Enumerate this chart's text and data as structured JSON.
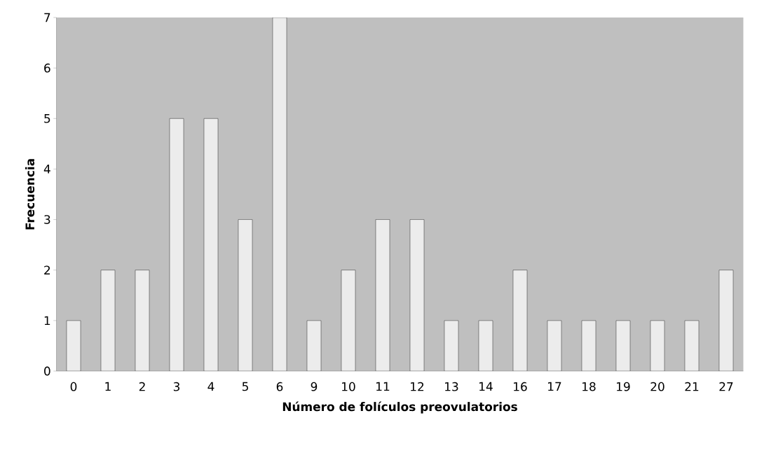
{
  "chart_data": {
    "type": "bar",
    "xlabel": "Número de folículos preovulatorios",
    "ylabel": "Frecuencia",
    "categories": [
      "0",
      "1",
      "2",
      "3",
      "4",
      "5",
      "6",
      "9",
      "10",
      "11",
      "12",
      "13",
      "14",
      "16",
      "17",
      "18",
      "19",
      "20",
      "21",
      "27"
    ],
    "values": [
      1,
      2,
      2,
      5,
      5,
      3,
      7,
      1,
      2,
      3,
      3,
      1,
      1,
      2,
      1,
      1,
      1,
      1,
      1,
      2
    ],
    "color": "#ececec",
    "ylim": [
      0,
      7
    ],
    "yticks": [
      0,
      1,
      2,
      3,
      4,
      5,
      6,
      7
    ]
  }
}
